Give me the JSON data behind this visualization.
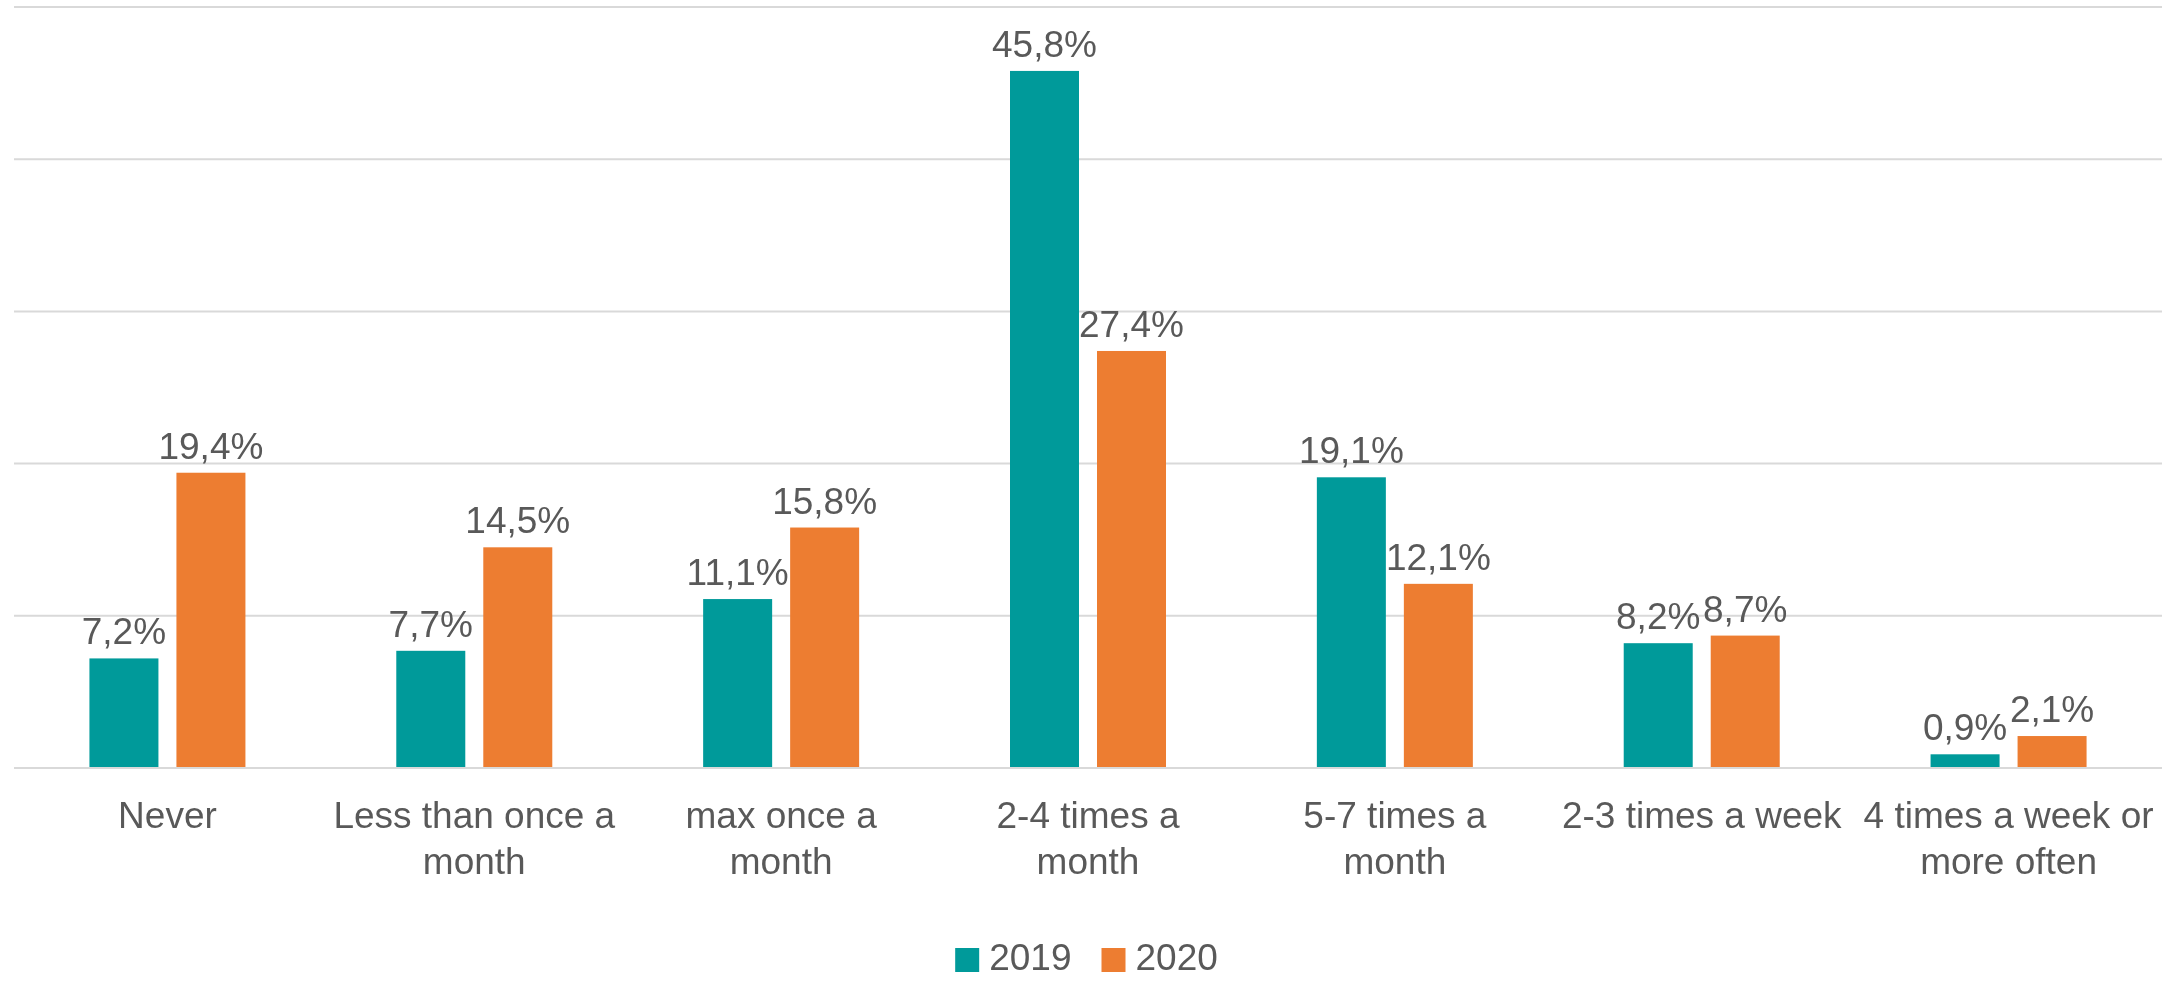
{
  "chart_data": {
    "type": "bar",
    "categories": [
      "Never",
      "Less than once a month",
      "max once a month",
      "2-4 times a month",
      "5-7 times a month",
      "2-3 times a week",
      "4 times a week or more often"
    ],
    "series": [
      {
        "name": "2019",
        "color": "#009a9a",
        "values": [
          7.2,
          7.7,
          11.1,
          45.8,
          19.1,
          8.2,
          0.9
        ],
        "value_labels": [
          "7,2%",
          "7,7%",
          "11,1%",
          "45,8%",
          "19,1%",
          "8,2%",
          "0,9%"
        ]
      },
      {
        "name": "2020",
        "color": "#ed7d31",
        "values": [
          19.4,
          14.5,
          15.8,
          27.4,
          12.1,
          8.7,
          2.1
        ],
        "value_labels": [
          "19,4%",
          "14,5%",
          "15,8%",
          "27,4%",
          "12,1%",
          "8,7%",
          "2,1%"
        ]
      }
    ],
    "ylim": [
      0,
      50
    ],
    "yticks": [
      {
        "value": 0,
        "label": null
      },
      {
        "value": 10,
        "label": null
      },
      {
        "value": 20,
        "label": null
      },
      {
        "value": 30,
        "label": null
      },
      {
        "value": 40,
        "label": null
      },
      {
        "value": 50,
        "label": null
      }
    ],
    "tick_labels": "x",
    "grid": "y",
    "legend": "bottom"
  }
}
